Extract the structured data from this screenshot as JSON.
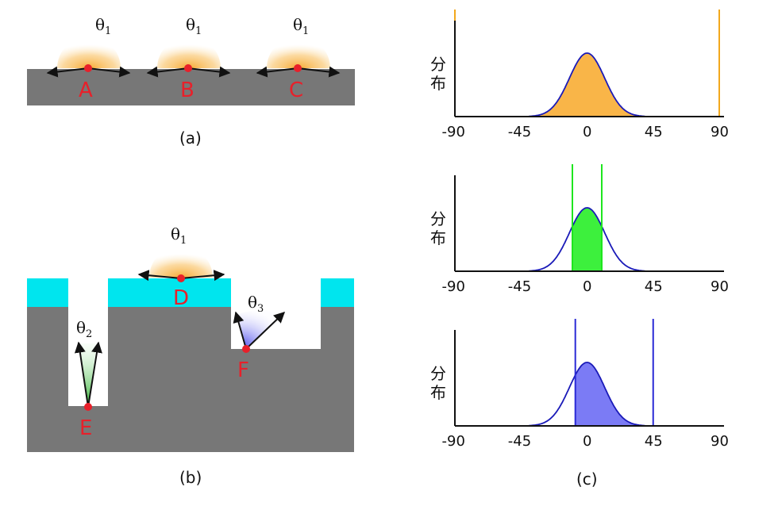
{
  "panel_a": {
    "caption": "(a)",
    "points": [
      {
        "id": "A",
        "theta": "θ",
        "sub": "1"
      },
      {
        "id": "B",
        "theta": "θ",
        "sub": "1"
      },
      {
        "id": "C",
        "theta": "θ",
        "sub": "1"
      }
    ]
  },
  "panel_b": {
    "caption": "(b)",
    "points": [
      {
        "id": "D",
        "theta": "θ",
        "sub": "1"
      },
      {
        "id": "E",
        "theta": "θ",
        "sub": "2"
      },
      {
        "id": "F",
        "theta": "θ",
        "sub": "3"
      }
    ]
  },
  "panel_c": {
    "caption": "(c)",
    "ylabel_line1": "分",
    "ylabel_line2": "布",
    "tick_labels": [
      "-90",
      "-45",
      "0",
      "45",
      "90"
    ]
  },
  "colors": {
    "substrate": "#777777",
    "coating": "#00e5ee",
    "point": "#e8202a",
    "orange": "#f9a825",
    "green": "#1ee61e",
    "blue": "#2222cc",
    "violet": "#7b7bf5"
  },
  "chart_data": [
    {
      "type": "area",
      "x_range": [
        -90,
        90
      ],
      "xticks": [
        -90,
        -45,
        0,
        45,
        90
      ],
      "distribution": {
        "mean": 0,
        "sigma": 12
      },
      "filled_range": [
        -90,
        90
      ],
      "cutoff_lines": [
        -90,
        90
      ],
      "fill_color": "#f9b548",
      "line_color": "#f2a81d"
    },
    {
      "type": "area",
      "x_range": [
        -90,
        90
      ],
      "xticks": [
        -90,
        -45,
        0,
        45,
        90
      ],
      "distribution": {
        "mean": 0,
        "sigma": 12
      },
      "filled_range": [
        -10,
        10
      ],
      "cutoff_lines": [
        -10,
        10
      ],
      "fill_color": "#3df03d",
      "line_color": "#1ee61e"
    },
    {
      "type": "area",
      "x_range": [
        -90,
        90
      ],
      "xticks": [
        -90,
        -45,
        0,
        45,
        90
      ],
      "distribution": {
        "mean": 0,
        "sigma": 12
      },
      "filled_range": [
        -8,
        45
      ],
      "cutoff_lines": [
        -8,
        45
      ],
      "fill_color": "#7b7bf5",
      "line_color": "#2a2ad6"
    }
  ]
}
